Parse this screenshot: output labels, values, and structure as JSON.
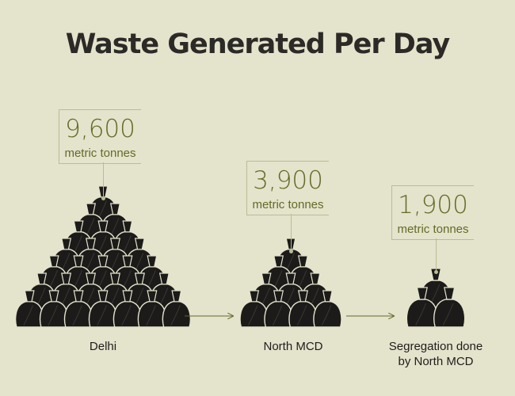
{
  "title": "Waste Generated Per Day",
  "colors": {
    "background": "#e4e3cc",
    "bag": "#1c1b19",
    "accent": "#636a27",
    "callout_line": "#b9bd94"
  },
  "icon": "garbage-bag-icon",
  "chart_data": {
    "type": "pictograph",
    "title": "Waste Generated Per Day",
    "categories": [
      "Delhi",
      "North MCD",
      "Segregation done\nby North MCD"
    ],
    "values": [
      9600,
      3900,
      1900
    ],
    "value_labels": [
      "9,600",
      "3,900",
      "1,900"
    ],
    "unit": "metric tonnes"
  }
}
